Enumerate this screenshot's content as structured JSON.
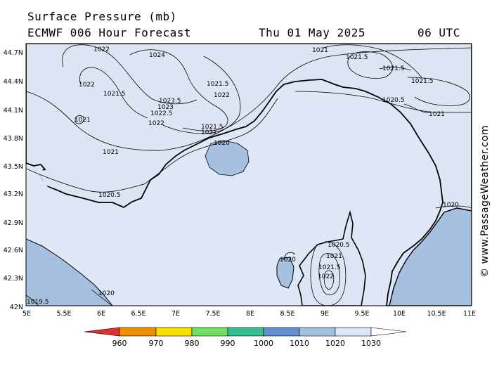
{
  "header": {
    "title": "Surface Pressure (mb)",
    "model": "ECMWF 006 Hour Forecast",
    "date": "Thu 01 May 2025",
    "time": "06 UTC"
  },
  "credit": "© www.PassageWeather.com",
  "axes": {
    "lat_labels": [
      "44.7N",
      "44.4N",
      "44.1N",
      "43.8N",
      "43.5N",
      "43.2N",
      "42.9N",
      "42.6N",
      "42.3N",
      "42N"
    ],
    "lon_labels": [
      "5E",
      "5.5E",
      "6E",
      "6.5E",
      "7E",
      "7.5E",
      "8E",
      "8.5E",
      "9E",
      "9.5E",
      "10E",
      "10.5E",
      "11E"
    ]
  },
  "contour_labels": [
    "1022",
    "1024",
    "1022",
    "1021.5",
    "1021",
    "1023.5",
    "1023",
    "1022.5",
    "1022",
    "1021.5",
    "1022",
    "1021.5",
    "1021",
    "1020",
    "1021",
    "1021",
    "1021.5",
    "1021.5",
    "1021.5",
    "1020.5",
    "1021",
    "1020.5",
    "1020",
    "1020",
    "1020.5",
    "1021",
    "1021.5",
    "1022",
    "1020",
    "1019.5"
  ],
  "colorbar": {
    "ticks": [
      "960",
      "970",
      "980",
      "990",
      "1000",
      "1010",
      "1020",
      "1030"
    ],
    "colors": [
      "#e03030",
      "#f08c00",
      "#f8e000",
      "#70e060",
      "#30c090",
      "#6090d0",
      "#a0c0e0",
      "#dde6f6"
    ]
  },
  "colors": {
    "sea": "#dfe6f5",
    "land": "#a6c0e0",
    "contour": "#000000"
  }
}
